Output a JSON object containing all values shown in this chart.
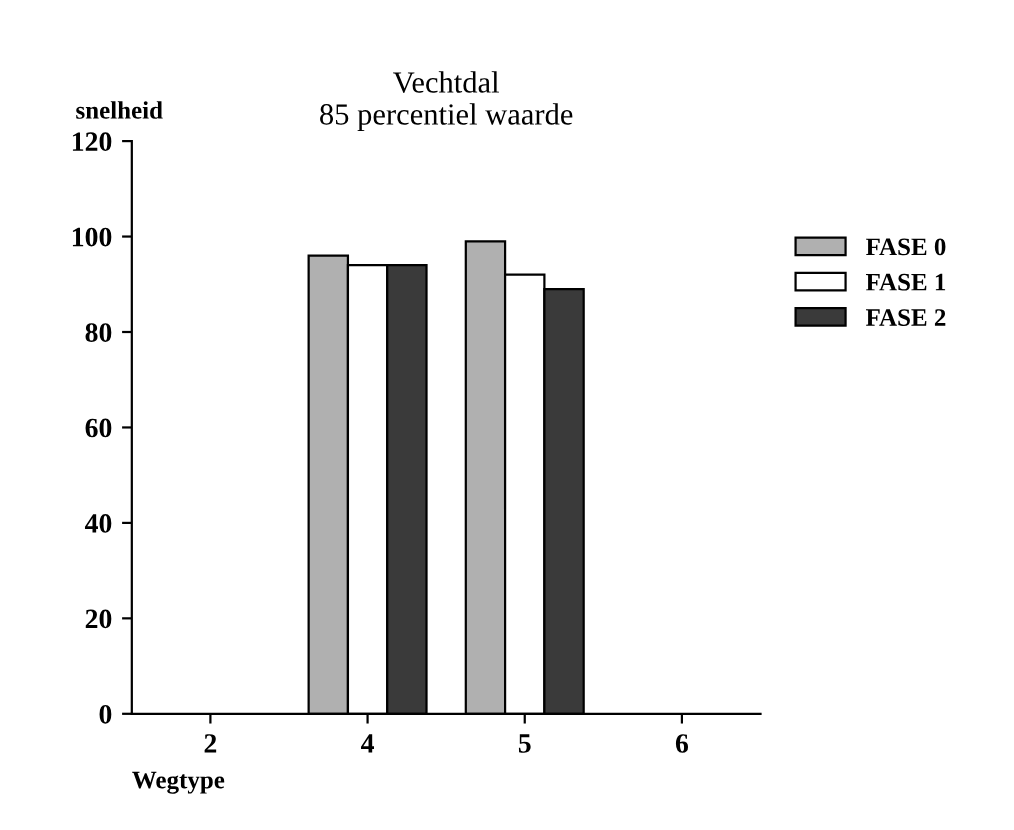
{
  "chart_data": {
    "type": "bar",
    "title": "Vechtdal\n85 percentiel waarde",
    "ylabel": "snelheid",
    "xlabel": "Wegtype",
    "categories": [
      "2",
      "4",
      "5",
      "6"
    ],
    "series": [
      {
        "name": "FASE 0",
        "color": "#b0b0b0",
        "values": [
          null,
          96,
          99,
          null
        ]
      },
      {
        "name": "FASE 1",
        "color": "#ffffff",
        "values": [
          null,
          94,
          92,
          null
        ]
      },
      {
        "name": "FASE 2",
        "color": "#3a3a3a",
        "values": [
          null,
          94,
          89,
          null
        ]
      }
    ],
    "ylim": [
      0,
      120
    ],
    "yticks": [
      0,
      20,
      40,
      60,
      80,
      100,
      120
    ],
    "grid": false,
    "legend": "right"
  }
}
